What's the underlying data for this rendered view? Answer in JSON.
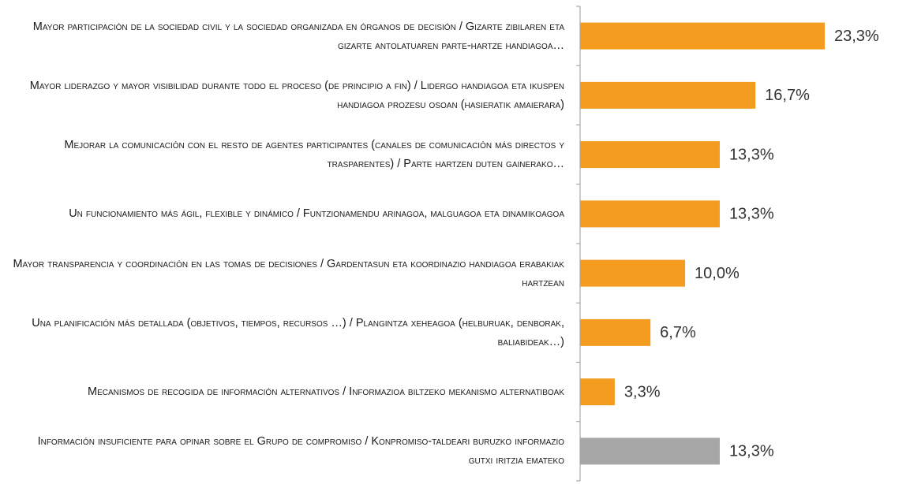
{
  "chart_data": {
    "type": "bar",
    "orientation": "horizontal",
    "categories": [
      "Mayor participación de la sociedad civil y la sociedad organizada en órganos de decisión / Gizarte zibilaren eta gizarte antolatuaren parte-hartze handiagoa…",
      "Mayor liderazgo y mayor visibilidad durante todo el proceso (de principio a fin) / Lidergo handiagoa eta ikuspen handiagoa prozesu osoan (hasieratik amaierara)",
      "Mejorar la comunicación con el resto de agentes participantes (canales de comunicación más directos y trasparentes) / Parte hartzen duten gainerako…",
      "Un funcionamiento más ágil, flexible y dinámico / Funtzionamendu arinagoa, malguagoa eta dinamikoagoa",
      "Mayor transparencia y coordinación en las tomas de decisiones / Gardentasun eta koordinazio handiagoa erabakiak hartzean",
      "Una planificación más detallada (objetivos, tiempos, recursos …) / Plangintza xeheagoa (helburuak, denborak, baliabideak…)",
      "Mecanismos de recogida de información alternativos / Informazioa biltzeko mekanismo alternatiboak",
      "Información insuficiente para opinar sobre el Grupo de compromiso / Konpromiso-taldeari buruzko informazio gutxi iritzia emateko"
    ],
    "values": [
      23.3,
      16.7,
      13.3,
      13.3,
      10.0,
      6.7,
      3.3,
      13.3
    ],
    "value_labels": [
      "23,3%",
      "16,7%",
      "13,3%",
      "13,3%",
      "10,0%",
      "6,7%",
      "3,3%",
      "13,3%"
    ],
    "colors": [
      "#f39c1f",
      "#f39c1f",
      "#f39c1f",
      "#f39c1f",
      "#f39c1f",
      "#f39c1f",
      "#f39c1f",
      "#a6a6a6"
    ]
  }
}
